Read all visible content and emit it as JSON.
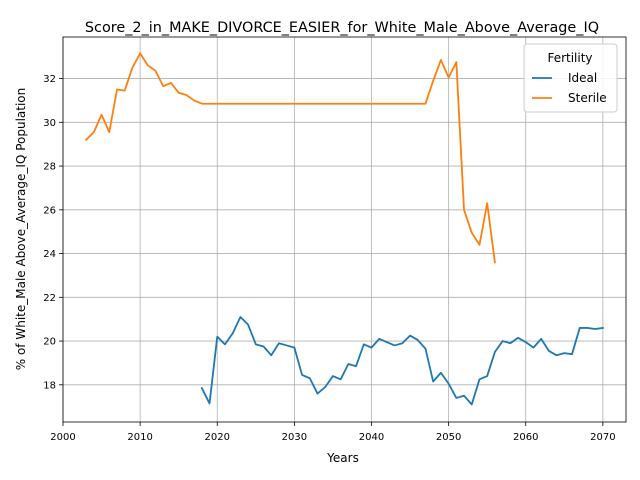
{
  "chart_data": {
    "type": "line",
    "title": "Score_2_in_MAKE_DIVORCE_EASIER_for_White_Male_Above_Average_IQ",
    "xlabel": "Years",
    "ylabel": "% of White_Male Above_Average_IQ Population",
    "xlim": [
      2000,
      2073
    ],
    "ylim": [
      16.3,
      33.9
    ],
    "xticks": [
      2000,
      2010,
      2020,
      2030,
      2040,
      2050,
      2060,
      2070
    ],
    "yticks": [
      18,
      20,
      22,
      24,
      26,
      28,
      30,
      32
    ],
    "grid": true,
    "legend": {
      "title": "Fertility",
      "position": "top-right"
    },
    "series": [
      {
        "name": "Ideal",
        "color": "#1f77b4",
        "x": [
          2018,
          2019,
          2020,
          2021,
          2022,
          2023,
          2024,
          2025,
          2026,
          2027,
          2028,
          2029,
          2030,
          2031,
          2032,
          2033,
          2034,
          2035,
          2036,
          2037,
          2038,
          2039,
          2040,
          2041,
          2042,
          2043,
          2044,
          2045,
          2046,
          2047,
          2048,
          2049,
          2050,
          2051,
          2052,
          2053,
          2054,
          2055,
          2056,
          2057,
          2058,
          2059,
          2060,
          2061,
          2062,
          2063,
          2064,
          2065,
          2066,
          2067,
          2068,
          2069,
          2070
        ],
        "y": [
          17.85,
          17.15,
          20.2,
          19.85,
          20.35,
          21.1,
          20.75,
          19.85,
          19.75,
          19.35,
          19.9,
          19.8,
          19.7,
          18.45,
          18.3,
          17.6,
          17.9,
          18.4,
          18.25,
          18.95,
          18.85,
          19.85,
          19.7,
          20.1,
          19.95,
          19.8,
          19.9,
          20.25,
          20.05,
          19.65,
          18.15,
          18.55,
          18.05,
          17.4,
          17.5,
          17.1,
          18.25,
          18.4,
          19.5,
          20.0,
          19.9,
          20.15,
          19.95,
          19.7,
          20.1,
          19.55,
          19.35,
          19.45,
          19.4,
          20.6,
          20.6,
          20.55,
          20.6
        ]
      },
      {
        "name": "Sterile",
        "color": "#ff7f0e",
        "x": [
          2003,
          2004,
          2005,
          2006,
          2007,
          2008,
          2009,
          2010,
          2011,
          2012,
          2013,
          2014,
          2015,
          2016,
          2017,
          2018,
          2019,
          2020,
          2021,
          2022,
          2023,
          2024,
          2025,
          2026,
          2027,
          2028,
          2029,
          2030,
          2031,
          2032,
          2033,
          2034,
          2035,
          2036,
          2037,
          2038,
          2039,
          2040,
          2041,
          2042,
          2043,
          2044,
          2045,
          2046,
          2047,
          2048,
          2049,
          2050,
          2051,
          2052,
          2053,
          2054,
          2055,
          2056
        ],
        "y": [
          29.2,
          29.55,
          30.35,
          29.55,
          31.5,
          31.45,
          32.5,
          33.15,
          32.6,
          32.35,
          31.65,
          31.8,
          31.35,
          31.25,
          31.0,
          30.85,
          30.85,
          30.85,
          30.85,
          30.85,
          30.85,
          30.85,
          30.85,
          30.85,
          30.85,
          30.85,
          30.85,
          30.85,
          30.85,
          30.85,
          30.85,
          30.85,
          30.85,
          30.85,
          30.85,
          30.85,
          30.85,
          30.85,
          30.85,
          30.85,
          30.85,
          30.85,
          30.85,
          30.85,
          30.85,
          31.9,
          32.85,
          32.05,
          32.75,
          26.0,
          24.95,
          24.4,
          26.3,
          23.6
        ]
      }
    ]
  }
}
